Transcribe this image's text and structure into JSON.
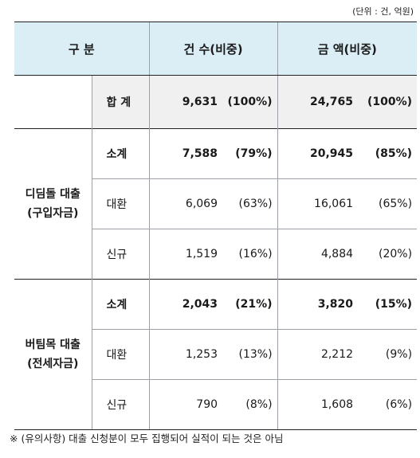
{
  "unit_label": "(단위 : 건, 억원)",
  "header": {
    "category": "구 분",
    "count": "건 수(비중)",
    "amount": "금 액(비중)"
  },
  "total": {
    "label": "합 계",
    "count": "9,631",
    "count_pct": "(100%)",
    "amount": "24,765",
    "amount_pct": "(100%)"
  },
  "groups": [
    {
      "name_line1": "디딤돌 대출",
      "name_line2": "(구입자금)",
      "rows": [
        {
          "label": "소계",
          "count": "7,588",
          "count_pct": "(79%)",
          "amount": "20,945",
          "amount_pct": "(85%)"
        },
        {
          "label": "대환",
          "count": "6,069",
          "count_pct": "(63%)",
          "amount": "16,061",
          "amount_pct": "(65%)"
        },
        {
          "label": "신규",
          "count": "1,519",
          "count_pct": "(16%)",
          "amount": "4,884",
          "amount_pct": "(20%)"
        }
      ]
    },
    {
      "name_line1": "버팀목 대출",
      "name_line2": "(전세자금)",
      "rows": [
        {
          "label": "소계",
          "count": "2,043",
          "count_pct": "(21%)",
          "amount": "3,820",
          "amount_pct": "(15%)"
        },
        {
          "label": "대환",
          "count": "1,253",
          "count_pct": "(13%)",
          "amount": "2,212",
          "amount_pct": "(9%)"
        },
        {
          "label": "신규",
          "count": "790",
          "count_pct": "(8%)",
          "amount": "1,608",
          "amount_pct": "(6%)"
        }
      ]
    }
  ],
  "footnote": "※ (유의사항) 대출 신청분이 모두 집행되어 실적이 되는 것은 아님"
}
